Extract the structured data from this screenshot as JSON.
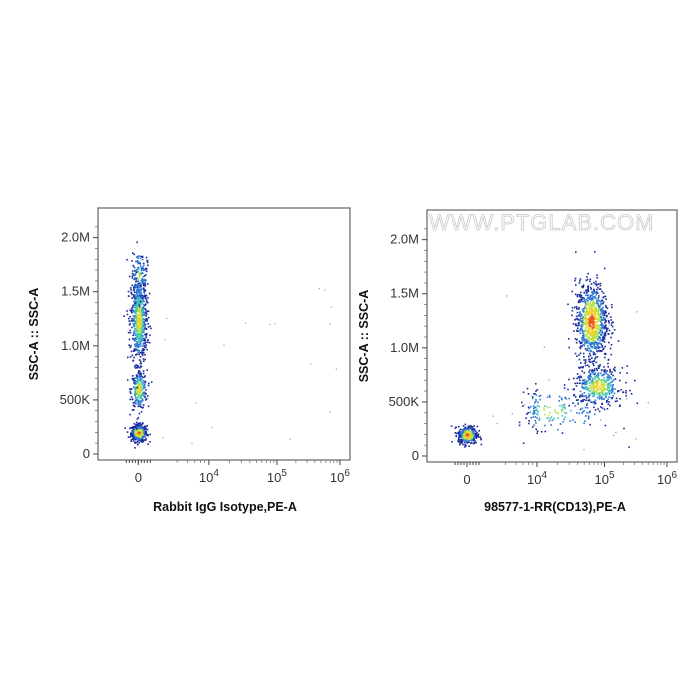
{
  "watermark": "WWW.PTGLAB.COM",
  "colors": {
    "low": "#1a2a9c",
    "mid1": "#2e7bd6",
    "mid2": "#3fc4b0",
    "mid3": "#b8e34a",
    "high1": "#f2d22a",
    "high2": "#e8581c"
  },
  "chart_data": [
    {
      "type": "scatter",
      "subtype": "flow-cytometry-density",
      "xlabel": "Rabbit IgG Isotype,PE-A",
      "ylabel": "SSC-A :: SSC-A",
      "x_scale": "biexponential",
      "y_ticks": [
        "0",
        "500K",
        "1.0M",
        "1.5M",
        "2.0M"
      ],
      "x_ticks": [
        {
          "base": "0",
          "exp": ""
        },
        {
          "base": "10",
          "exp": "4"
        },
        {
          "base": "10",
          "exp": "5"
        },
        {
          "base": "10",
          "exp": "6"
        }
      ],
      "ylim": [
        0,
        2200000
      ],
      "populations": [
        {
          "x_center": 0,
          "y_center": 200000,
          "n": 420,
          "sx": 0.05,
          "sy": 40000,
          "density": "high"
        },
        {
          "x_center": 0,
          "y_center": 600000,
          "n": 260,
          "sx": 0.05,
          "sy": 90000,
          "density": "medium"
        },
        {
          "x_center": 0,
          "y_center": 1250000,
          "n": 700,
          "sx": 0.05,
          "sy": 200000,
          "density": "medium"
        },
        {
          "x_center": 0,
          "y_center": 1650000,
          "n": 120,
          "sx": 0.05,
          "sy": 120000,
          "density": "low"
        }
      ]
    },
    {
      "type": "scatter",
      "subtype": "flow-cytometry-density",
      "xlabel": "98577-1-RR(CD13),PE-A",
      "ylabel": "SSC-A :: SSC-A",
      "x_scale": "biexponential",
      "y_ticks": [
        "0",
        "500K",
        "1.0M",
        "1.5M",
        "2.0M"
      ],
      "x_ticks": [
        {
          "base": "0",
          "exp": ""
        },
        {
          "base": "10",
          "exp": "4"
        },
        {
          "base": "10",
          "exp": "5"
        },
        {
          "base": "10",
          "exp": "6"
        }
      ],
      "ylim": [
        0,
        2200000
      ],
      "populations": [
        {
          "x_center": 0,
          "y_center": 200000,
          "n": 380,
          "sx": 0.06,
          "sy": 40000,
          "density": "high"
        },
        {
          "x_center": 4.8,
          "y_center": 1250000,
          "n": 900,
          "sx": 0.12,
          "sy": 180000,
          "density": "high"
        },
        {
          "x_center": 4.9,
          "y_center": 650000,
          "n": 420,
          "sx": 0.18,
          "sy": 90000,
          "density": "medium"
        },
        {
          "x_center": 4.2,
          "y_center": 420000,
          "n": 160,
          "sx": 0.45,
          "sy": 110000,
          "density": "low"
        }
      ]
    }
  ]
}
